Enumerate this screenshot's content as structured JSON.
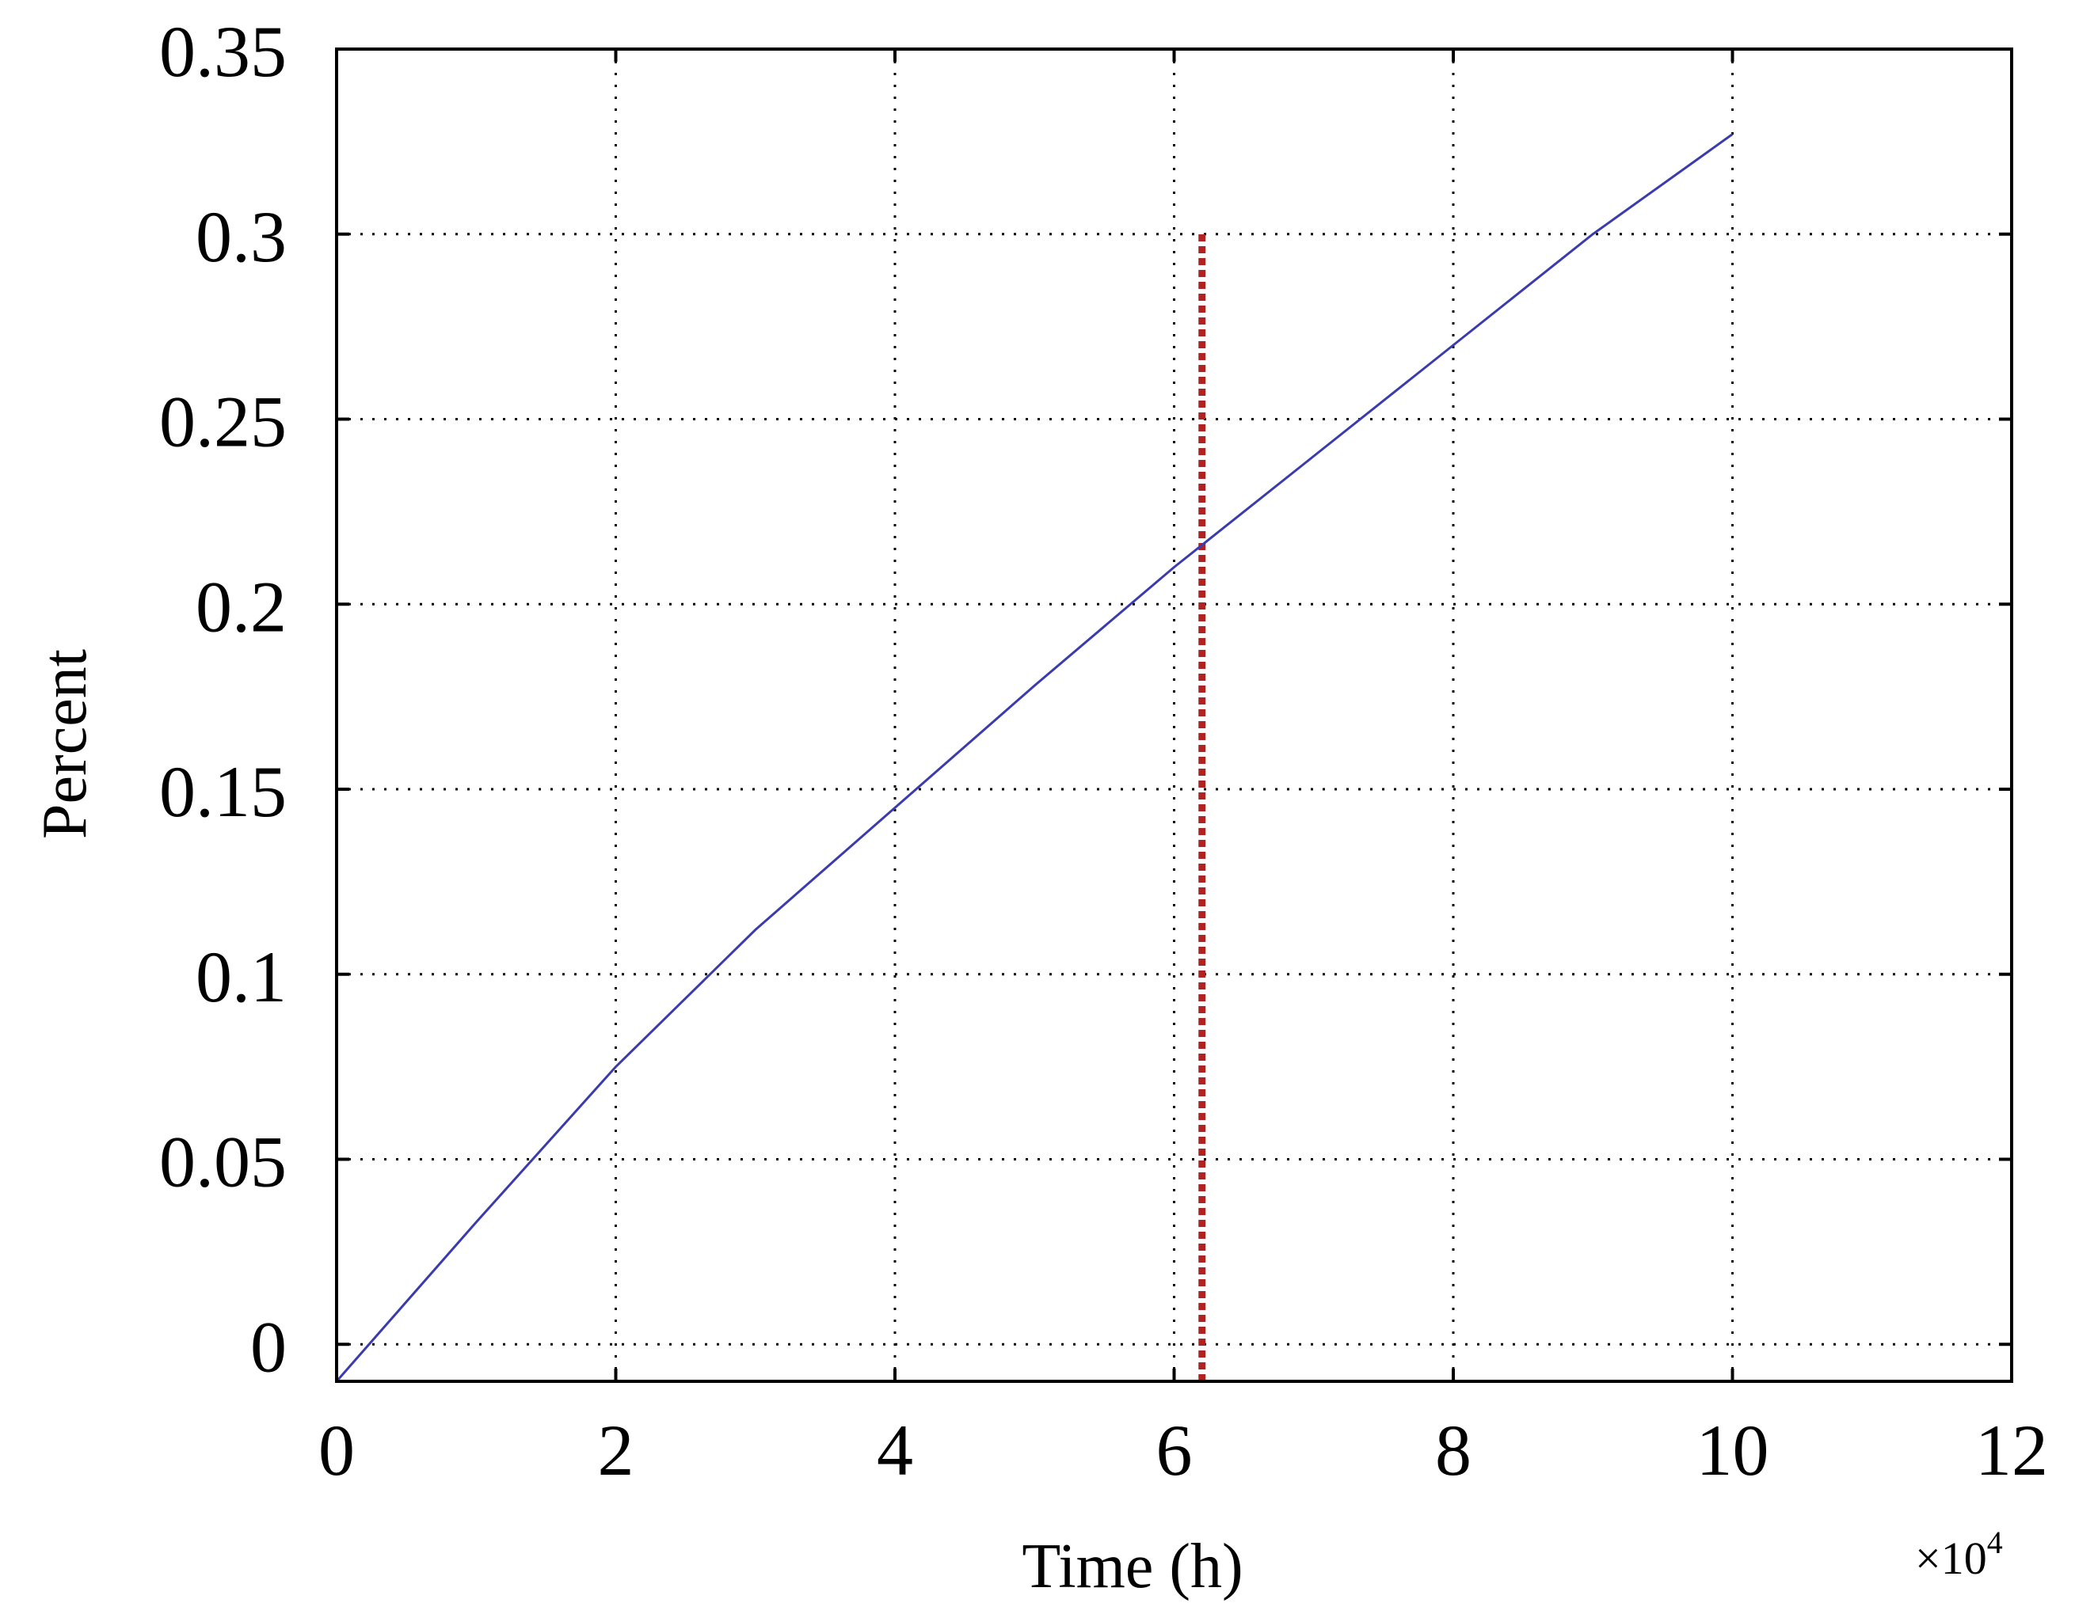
{
  "chart_data": {
    "type": "line",
    "xlabel": "Time (h)",
    "ylabel": "Percent",
    "x_multiplier": {
      "base": "×10",
      "exponent": "4"
    },
    "xlim": [
      0,
      12
    ],
    "ylim": [
      -0.01,
      0.35
    ],
    "x_ticks": [
      0,
      2,
      4,
      6,
      8,
      10,
      12
    ],
    "x_tick_labels": [
      "0",
      "2",
      "4",
      "6",
      "8",
      "10",
      "12"
    ],
    "y_ticks": [
      0,
      0.05,
      0.1,
      0.15,
      0.2,
      0.25,
      0.3,
      0.35
    ],
    "y_tick_labels": [
      "0",
      "0.05",
      "0.1",
      "0.15",
      "0.2",
      "0.25",
      "0.3",
      "0.35"
    ],
    "grid": true,
    "series": [
      {
        "color": "#3b3bb0",
        "style": "solid",
        "x": [
          0,
          1,
          2,
          3,
          4,
          5,
          6,
          7,
          8,
          9,
          10
        ],
        "y": [
          -0.01,
          0.033,
          0.075,
          0.112,
          0.145,
          0.178,
          0.21,
          0.24,
          0.27,
          0.3,
          0.327
        ]
      }
    ],
    "vlines": [
      {
        "x": 6.2,
        "y_from": -0.01,
        "y_to": 0.3,
        "color": "#b22020",
        "style": "dashed"
      }
    ]
  }
}
